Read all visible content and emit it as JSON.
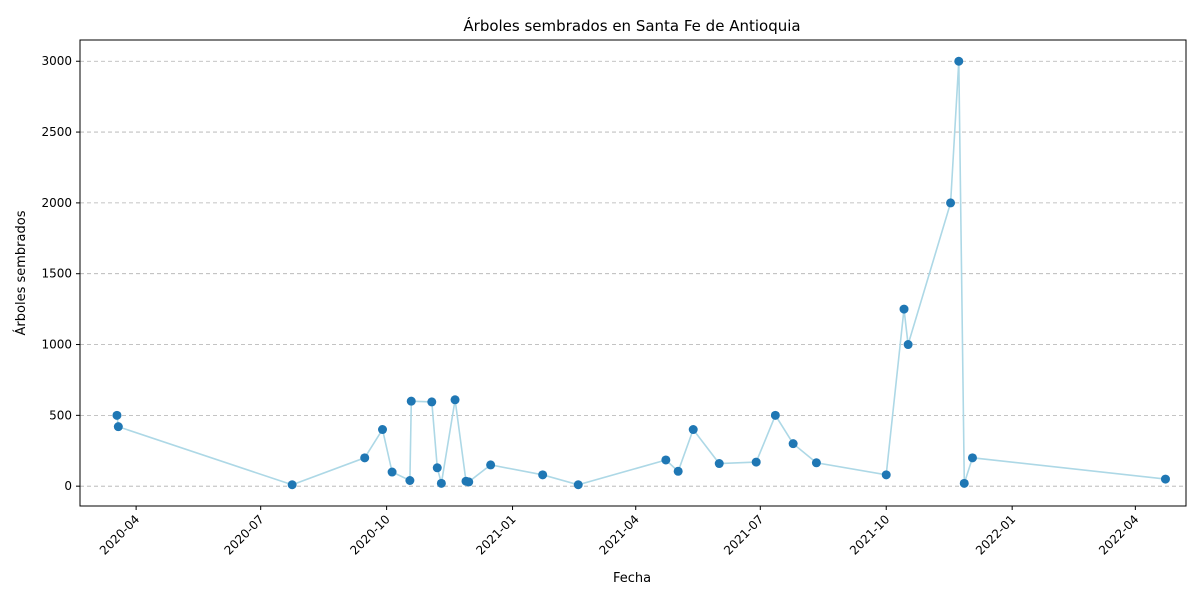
{
  "chart_data": {
    "type": "scatter",
    "title": "Árboles sembrados en Santa Fe de Antioquia",
    "xlabel": "Fecha",
    "ylabel": "Árboles sembrados",
    "grid": "y-dashed",
    "line_color": "#add8e6",
    "marker_color": "#1f77b4",
    "xlim": [
      "2020-02-20",
      "2022-05-08"
    ],
    "ylim": [
      -140,
      3150
    ],
    "x_ticks": [
      "2020-04",
      "2020-07",
      "2020-10",
      "2021-01",
      "2021-04",
      "2021-07",
      "2021-10",
      "2022-01",
      "2022-04"
    ],
    "x_tick_dates": [
      "2020-04-01",
      "2020-07-01",
      "2020-10-01",
      "2021-01-01",
      "2021-04-01",
      "2021-07-01",
      "2021-10-01",
      "2022-01-01",
      "2022-04-01"
    ],
    "y_ticks": [
      0,
      500,
      1000,
      1500,
      2000,
      2500,
      3000
    ],
    "series": [
      {
        "points": [
          {
            "x": "2020-03-18",
            "y": 500
          },
          {
            "x": "2020-03-19",
            "y": 420
          },
          {
            "x": "2020-07-24",
            "y": 10
          },
          {
            "x": "2020-09-15",
            "y": 200
          },
          {
            "x": "2020-09-28",
            "y": 400
          },
          {
            "x": "2020-10-05",
            "y": 100
          },
          {
            "x": "2020-10-18",
            "y": 40
          },
          {
            "x": "2020-10-19",
            "y": 600
          },
          {
            "x": "2020-11-03",
            "y": 595
          },
          {
            "x": "2020-11-07",
            "y": 130
          },
          {
            "x": "2020-11-10",
            "y": 20
          },
          {
            "x": "2020-11-20",
            "y": 610
          },
          {
            "x": "2020-11-28",
            "y": 35
          },
          {
            "x": "2020-11-30",
            "y": 30
          },
          {
            "x": "2020-12-16",
            "y": 150
          },
          {
            "x": "2021-01-23",
            "y": 80
          },
          {
            "x": "2021-02-18",
            "y": 10
          },
          {
            "x": "2021-04-23",
            "y": 185
          },
          {
            "x": "2021-05-02",
            "y": 105
          },
          {
            "x": "2021-05-13",
            "y": 400
          },
          {
            "x": "2021-06-01",
            "y": 160
          },
          {
            "x": "2021-06-28",
            "y": 170
          },
          {
            "x": "2021-07-12",
            "y": 500
          },
          {
            "x": "2021-07-25",
            "y": 300
          },
          {
            "x": "2021-08-11",
            "y": 165
          },
          {
            "x": "2021-10-01",
            "y": 80
          },
          {
            "x": "2021-10-14",
            "y": 1250
          },
          {
            "x": "2021-10-17",
            "y": 1000
          },
          {
            "x": "2021-11-17",
            "y": 2000
          },
          {
            "x": "2021-11-23",
            "y": 3000
          },
          {
            "x": "2021-11-27",
            "y": 20
          },
          {
            "x": "2021-12-03",
            "y": 200
          },
          {
            "x": "2022-04-23",
            "y": 50
          }
        ]
      }
    ]
  }
}
